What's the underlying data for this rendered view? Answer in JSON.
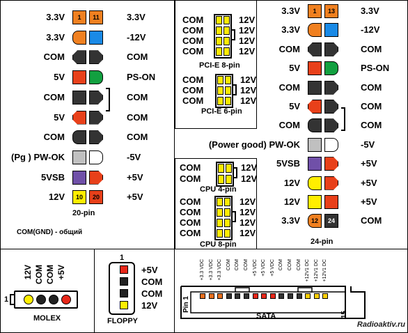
{
  "atx20": {
    "left_labels": [
      "3.3V",
      "3.3V",
      "COM",
      "5V",
      "COM",
      "5V",
      "COM",
      "(Pg ) PW-OK",
      "5VSB",
      "12V"
    ],
    "right_labels": [
      "3.3V",
      "-12V",
      "COM",
      "PS-ON",
      "COM",
      "COM",
      "COM",
      "-5V",
      "+5V",
      "+5V"
    ],
    "pin1": "1",
    "pin11": "11",
    "pin10": "10",
    "pin20": "20",
    "caption": "20-pin",
    "note": "COM(GND) - общий"
  },
  "pcie8": {
    "left_labels": [
      "COM",
      "COM",
      "COM",
      "COM"
    ],
    "right_labels": [
      "12V",
      "12V",
      "12V",
      "12V"
    ],
    "caption": "PCI-E 8-pin"
  },
  "pcie6": {
    "left_labels": [
      "COM",
      "COM",
      "COM"
    ],
    "right_labels": [
      "12V",
      "12V",
      "12V"
    ],
    "caption": "PCI-E 6-pin"
  },
  "cpu4": {
    "left_labels": [
      "COM",
      "COM"
    ],
    "right_labels": [
      "12V",
      "12V"
    ],
    "caption": "CPU 4-pin"
  },
  "cpu8": {
    "left_labels": [
      "COM",
      "COM",
      "COM",
      "COM"
    ],
    "right_labels": [
      "12V",
      "12V",
      "12V",
      "12V"
    ],
    "caption": "CPU 8-pin"
  },
  "atx24": {
    "left_labels": [
      "3.3V",
      "3.3V",
      "COM",
      "5V",
      "COM",
      "5V",
      "COM",
      "(Power good) PW-OK",
      "5VSB",
      "12V",
      "12V",
      "3.3V"
    ],
    "right_labels": [
      "3.3V",
      "-12V",
      "COM",
      "PS-ON",
      "COM",
      "COM",
      "COM",
      "-5V",
      "+5V",
      "+5V",
      "+5V",
      "COM"
    ],
    "pin1": "1",
    "pin13": "13",
    "pin12": "12",
    "pin24": "24",
    "caption": "24-pin"
  },
  "molex": {
    "labels": [
      "12V",
      "COM",
      "COM",
      "+5V"
    ],
    "pin1": "1",
    "caption": "MOLEX"
  },
  "floppy": {
    "labels": [
      "+5V",
      "COM",
      "COM",
      "12V"
    ],
    "pin1": "1",
    "caption": "FLOPPY"
  },
  "sata": {
    "labels": [
      "+3.3 VDC",
      "+3.3 VDC",
      "+3.3 VDC",
      "COM",
      "COM",
      "COM",
      "+5 VDC",
      "+5 VDC",
      "+5 VDC",
      "COM",
      "COM",
      "COM",
      "+12V1 DC",
      "+12V1 DC",
      "+12V1 DC"
    ],
    "pin1": "Pin 1",
    "pin15": "15",
    "caption": "SATA"
  },
  "watermark": "Radioaktiv.ru",
  "colors": {
    "orange": "#f08020",
    "blue": "#1a8ae6",
    "black": "#333333",
    "red": "#e8401a",
    "green": "#12a040",
    "grey": "#c0c0c0",
    "white": "#ffffff",
    "purple": "#7050a8",
    "yellow": "#ffee00"
  }
}
